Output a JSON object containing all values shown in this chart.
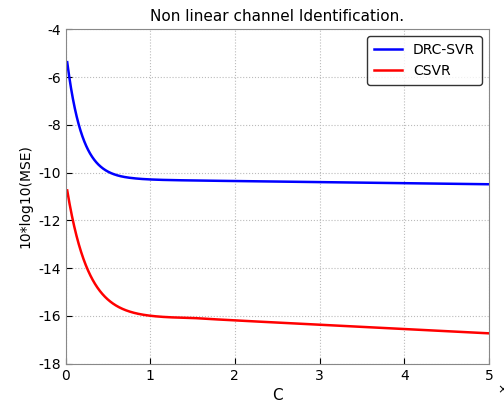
{
  "title": "Non linear channel Identification.",
  "xlabel": "C",
  "ylabel": "10*log10(MSE)",
  "xlim": [
    0,
    50000
  ],
  "ylim": [
    -18,
    -4
  ],
  "xticks": [
    0,
    10000,
    20000,
    30000,
    40000,
    50000
  ],
  "xtick_labels": [
    "0",
    "1",
    "2",
    "3",
    "4",
    "5"
  ],
  "yticks": [
    -18,
    -16,
    -14,
    -12,
    -10,
    -8,
    -6,
    -4
  ],
  "blue_label": "DRC-SVR",
  "red_label": "CSVR",
  "blue_color": "#0000FF",
  "red_color": "#FF0000",
  "line_width": 1.8,
  "background_color": "#ffffff",
  "axes_bg_color": "#ffffff",
  "grid_color": "#bbbbbb",
  "spine_color": "#888888"
}
